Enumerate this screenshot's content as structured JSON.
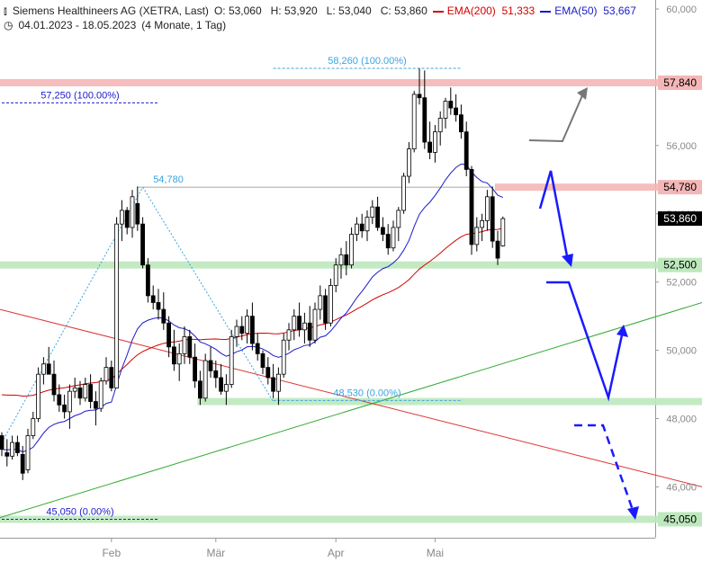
{
  "header": {
    "title": "Siemens Healthineers AG (XETRA, Last)",
    "ohlc": "O: 53,060   H: 53,920   L: 53,040   C: 53,860",
    "ema200_label": "EMA(200)",
    "ema200_value": "51,333",
    "ema50_label": "EMA(50)",
    "ema50_value": "53,667",
    "range": "04.01.2023 - 18.05.2023",
    "period": "(4 Monate, 1 Tag)"
  },
  "colors": {
    "up": "#ffffff",
    "down": "#000000",
    "ema200": "#d40000",
    "ema50": "#1a1acc",
    "resistance": "#f4b6b6",
    "support": "#bde8bd",
    "fib": "#3aa3e0",
    "arrow_blue": "#1a1aff",
    "arrow_grey": "#777777"
  },
  "chart_data": {
    "type": "candlestick",
    "ylim": [
      44800,
      60000
    ],
    "yticks": [
      {
        "v": 60000,
        "label": "60,000"
      },
      {
        "v": 56000,
        "label": "56,000"
      },
      {
        "v": 54000,
        "label": "54,000"
      },
      {
        "v": 52000,
        "label": "52,000"
      },
      {
        "v": 50000,
        "label": "50,000"
      },
      {
        "v": 48000,
        "label": "48,000"
      },
      {
        "v": 46000,
        "label": "46,000"
      }
    ],
    "xticks": [
      {
        "i": 21,
        "label": "Feb"
      },
      {
        "i": 41,
        "label": "Mär"
      },
      {
        "i": 64,
        "label": "Apr"
      },
      {
        "i": 83,
        "label": "Mai"
      }
    ],
    "price_labels": [
      {
        "v": 57840,
        "label": "57,840",
        "style": "grey"
      },
      {
        "v": 54780,
        "label": "54,780",
        "style": "grey"
      },
      {
        "v": 53860,
        "label": "53,860",
        "style": "black"
      },
      {
        "v": 52500,
        "label": "52,500",
        "style": "grey"
      },
      {
        "v": 45050,
        "label": "45,050",
        "style": "grey"
      }
    ],
    "zones": [
      {
        "v": 57840,
        "kind": "resistance",
        "from": 0
      },
      {
        "v": 54780,
        "kind": "resistance",
        "from": 95
      },
      {
        "v": 52500,
        "kind": "support",
        "from": 0
      },
      {
        "v": 48500,
        "kind": "support",
        "from": 38
      },
      {
        "v": 45050,
        "kind": "support",
        "from": 0
      }
    ],
    "fib_labels": [
      {
        "text": "58,260 (100.00%)",
        "v": 58260,
        "i0": 52,
        "i1": 88
      },
      {
        "text": "57,250 (100.00%)",
        "v": 57250,
        "i0": 0,
        "i1": 30
      },
      {
        "text": "54,780",
        "v": 54780,
        "i0": 26,
        "i1": 94
      },
      {
        "text": "48,530 (0.00%)",
        "v": 48530,
        "i0": 52,
        "i1": 88
      },
      {
        "text": "45,050 (0.00%)",
        "v": 45050,
        "i0": 0,
        "i1": 30
      }
    ],
    "ohlc": [
      [
        47500,
        47600,
        46900,
        47100
      ],
      [
        47000,
        47400,
        46600,
        46900
      ],
      [
        46900,
        47500,
        46800,
        47300
      ],
      [
        47300,
        47500,
        46900,
        47000
      ],
      [
        46950,
        47200,
        46200,
        46400
      ],
      [
        46500,
        47700,
        46400,
        47500
      ],
      [
        47500,
        48200,
        47400,
        48000
      ],
      [
        48000,
        49500,
        47900,
        49300
      ],
      [
        49300,
        49800,
        49000,
        49600
      ],
      [
        49600,
        50100,
        49400,
        49300
      ],
      [
        49300,
        49700,
        48500,
        48700
      ],
      [
        48700,
        49000,
        48200,
        48400
      ],
      [
        48400,
        48700,
        48000,
        48200
      ],
      [
        48200,
        49000,
        47700,
        48800
      ],
      [
        48800,
        49200,
        48600,
        48900
      ],
      [
        48900,
        49100,
        48400,
        48600
      ],
      [
        48600,
        49200,
        48500,
        49000
      ],
      [
        49000,
        49300,
        48300,
        48500
      ],
      [
        48500,
        48800,
        47800,
        48300
      ],
      [
        48300,
        49200,
        48200,
        49100
      ],
      [
        49100,
        49800,
        49000,
        49500
      ],
      [
        49500,
        49700,
        48800,
        48900
      ],
      [
        48900,
        53900,
        48900,
        53700
      ],
      [
        53700,
        54400,
        53200,
        54100
      ],
      [
        54100,
        54200,
        53400,
        53600
      ],
      [
        53600,
        54700,
        53300,
        54500
      ],
      [
        54300,
        54800,
        53500,
        53700
      ],
      [
        53700,
        53900,
        52400,
        52500
      ],
      [
        52500,
        52700,
        51400,
        51600
      ],
      [
        51600,
        51900,
        51200,
        51400
      ],
      [
        51400,
        51800,
        50900,
        51200
      ],
      [
        51200,
        51700,
        50600,
        50800
      ],
      [
        50800,
        51000,
        49800,
        50100
      ],
      [
        50100,
        50600,
        49400,
        49600
      ],
      [
        49600,
        50200,
        49100,
        49900
      ],
      [
        49900,
        50700,
        49600,
        50400
      ],
      [
        50400,
        50600,
        49600,
        49800
      ],
      [
        49800,
        50200,
        48900,
        49100
      ],
      [
        49100,
        49400,
        48400,
        48600
      ],
      [
        48600,
        49900,
        48500,
        49700
      ],
      [
        49700,
        50100,
        49200,
        49400
      ],
      [
        49400,
        49700,
        48900,
        49200
      ],
      [
        49200,
        49600,
        48700,
        48800
      ],
      [
        48800,
        49300,
        48400,
        49000
      ],
      [
        49000,
        50600,
        48900,
        50400
      ],
      [
        50400,
        50900,
        50100,
        50700
      ],
      [
        50700,
        51000,
        50300,
        50500
      ],
      [
        50500,
        51200,
        50200,
        51000
      ],
      [
        51000,
        51400,
        50000,
        50200
      ],
      [
        50200,
        50500,
        49700,
        49900
      ],
      [
        49900,
        50000,
        49300,
        49500
      ],
      [
        49500,
        49800,
        49000,
        49200
      ],
      [
        49200,
        49600,
        48600,
        48800
      ],
      [
        48800,
        49500,
        48400,
        49300
      ],
      [
        49300,
        50500,
        49200,
        50300
      ],
      [
        50300,
        50800,
        50000,
        50600
      ],
      [
        50600,
        51200,
        50300,
        51000
      ],
      [
        51000,
        51400,
        50400,
        50600
      ],
      [
        50600,
        51100,
        50200,
        50800
      ],
      [
        50800,
        51300,
        50100,
        50300
      ],
      [
        50300,
        51400,
        50200,
        51200
      ],
      [
        51200,
        51900,
        50900,
        51600
      ],
      [
        51600,
        51800,
        50600,
        50800
      ],
      [
        50800,
        52100,
        50700,
        51900
      ],
      [
        51900,
        52700,
        51700,
        52500
      ],
      [
        52500,
        53000,
        52100,
        52800
      ],
      [
        52800,
        53200,
        52200,
        52500
      ],
      [
        52500,
        53600,
        52400,
        53400
      ],
      [
        53400,
        53900,
        53200,
        53700
      ],
      [
        53700,
        54000,
        53300,
        53500
      ],
      [
        53500,
        54100,
        53200,
        53900
      ],
      [
        53900,
        54400,
        53700,
        54200
      ],
      [
        54200,
        54500,
        53500,
        53600
      ],
      [
        53600,
        53900,
        53200,
        53400
      ],
      [
        53400,
        53700,
        52800,
        53000
      ],
      [
        53000,
        53800,
        52900,
        53600
      ],
      [
        53600,
        54200,
        53200,
        54100
      ],
      [
        54100,
        55200,
        54000,
        55100
      ],
      [
        55100,
        56100,
        54900,
        55900
      ],
      [
        55900,
        57600,
        55800,
        57500
      ],
      [
        57500,
        58260,
        57200,
        57400
      ],
      [
        57400,
        58200,
        55900,
        56100
      ],
      [
        56100,
        56700,
        55600,
        55800
      ],
      [
        55800,
        56600,
        55500,
        56400
      ],
      [
        56400,
        57000,
        56000,
        56800
      ],
      [
        56800,
        57400,
        56500,
        57300
      ],
      [
        57300,
        57700,
        56900,
        57100
      ],
      [
        57100,
        57500,
        56700,
        56900
      ],
      [
        56900,
        57200,
        56200,
        56400
      ],
      [
        56400,
        56700,
        55100,
        55300
      ],
      [
        55300,
        55400,
        52800,
        53100
      ],
      [
        53100,
        53900,
        52900,
        53600
      ],
      [
        53600,
        54000,
        53200,
        53800
      ],
      [
        53800,
        54700,
        53500,
        54500
      ],
      [
        54500,
        54800,
        53000,
        53200
      ],
      [
        53200,
        53500,
        52500,
        52700
      ],
      [
        53060,
        53920,
        53040,
        53860
      ]
    ]
  }
}
